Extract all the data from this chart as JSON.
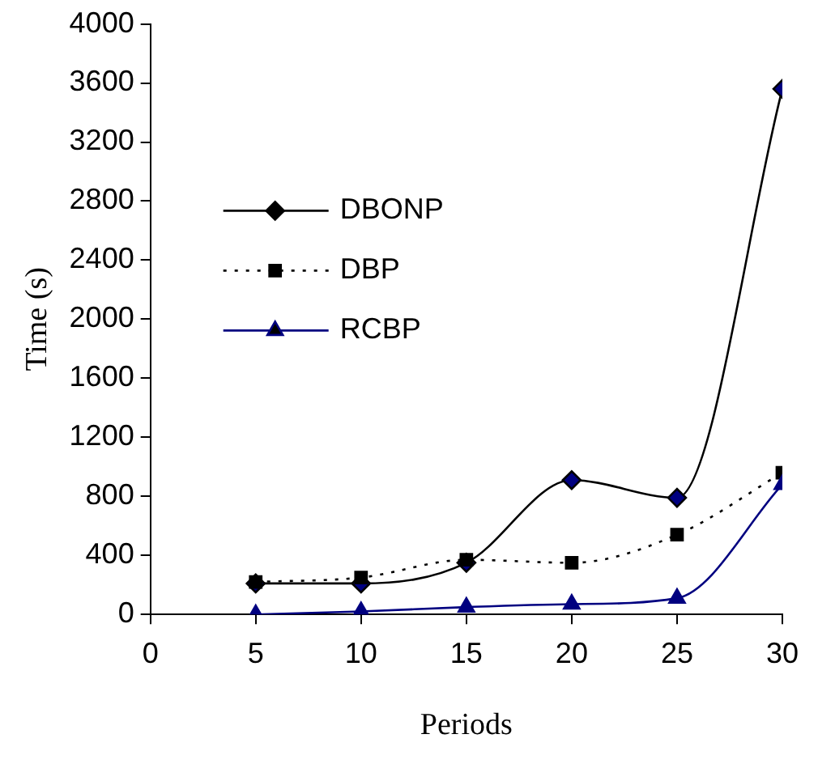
{
  "chart_data": {
    "type": "line",
    "xlabel": "Periods",
    "ylabel": "Time (s)",
    "x": [
      5,
      10,
      15,
      20,
      25,
      30
    ],
    "xlim": [
      0,
      30
    ],
    "xticks": [
      0,
      5,
      10,
      15,
      20,
      25,
      30
    ],
    "ylim": [
      0,
      4000
    ],
    "yticks": [
      0,
      400,
      800,
      1200,
      1600,
      2000,
      2400,
      2800,
      3200,
      3600,
      4000
    ],
    "grid": false,
    "legend": "center left",
    "series": [
      {
        "name": "DBONP",
        "color": "#000000",
        "marker": "diamond",
        "line_style": "solid",
        "values": [
          210,
          210,
          350,
          910,
          790,
          3560
        ]
      },
      {
        "name": "DBP",
        "color": "#000000",
        "marker": "square",
        "line_style": "dotted",
        "values": [
          220,
          250,
          370,
          350,
          540,
          960
        ]
      },
      {
        "name": "RCBP",
        "color": "#000080",
        "marker": "triangle",
        "line_style": "solid",
        "values": [
          0,
          20,
          50,
          70,
          110,
          880
        ]
      }
    ]
  }
}
